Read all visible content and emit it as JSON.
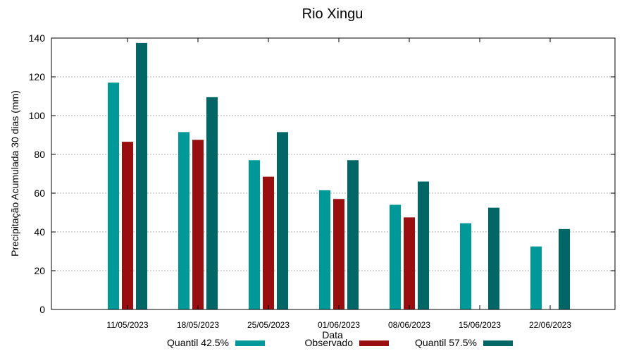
{
  "chart_data": {
    "type": "bar",
    "title": "Rio Xingu",
    "xlabel": "Data",
    "ylabel": "Precipitação Acumulada 30 dias (mm)",
    "ylim": [
      0,
      140
    ],
    "yticks": [
      0,
      20,
      40,
      60,
      80,
      100,
      120,
      140
    ],
    "grid": true,
    "legend_position": "bottom",
    "categories": [
      "11/05/2023",
      "18/05/2023",
      "25/05/2023",
      "01/06/2023",
      "08/06/2023",
      "15/06/2023",
      "22/06/2023"
    ],
    "series": [
      {
        "name": "Quantil 42.5%",
        "color": "#009999",
        "values": [
          117,
          91.5,
          77,
          61.5,
          54,
          44.5,
          32.5
        ]
      },
      {
        "name": "Observado",
        "color": "#990F0F",
        "values": [
          86.5,
          87.5,
          68.5,
          57,
          47.5,
          null,
          null
        ]
      },
      {
        "name": "Quantil 57.5%",
        "color": "#006666",
        "values": [
          137.5,
          109.5,
          91.5,
          77,
          66,
          52.5,
          41.5
        ]
      }
    ]
  }
}
